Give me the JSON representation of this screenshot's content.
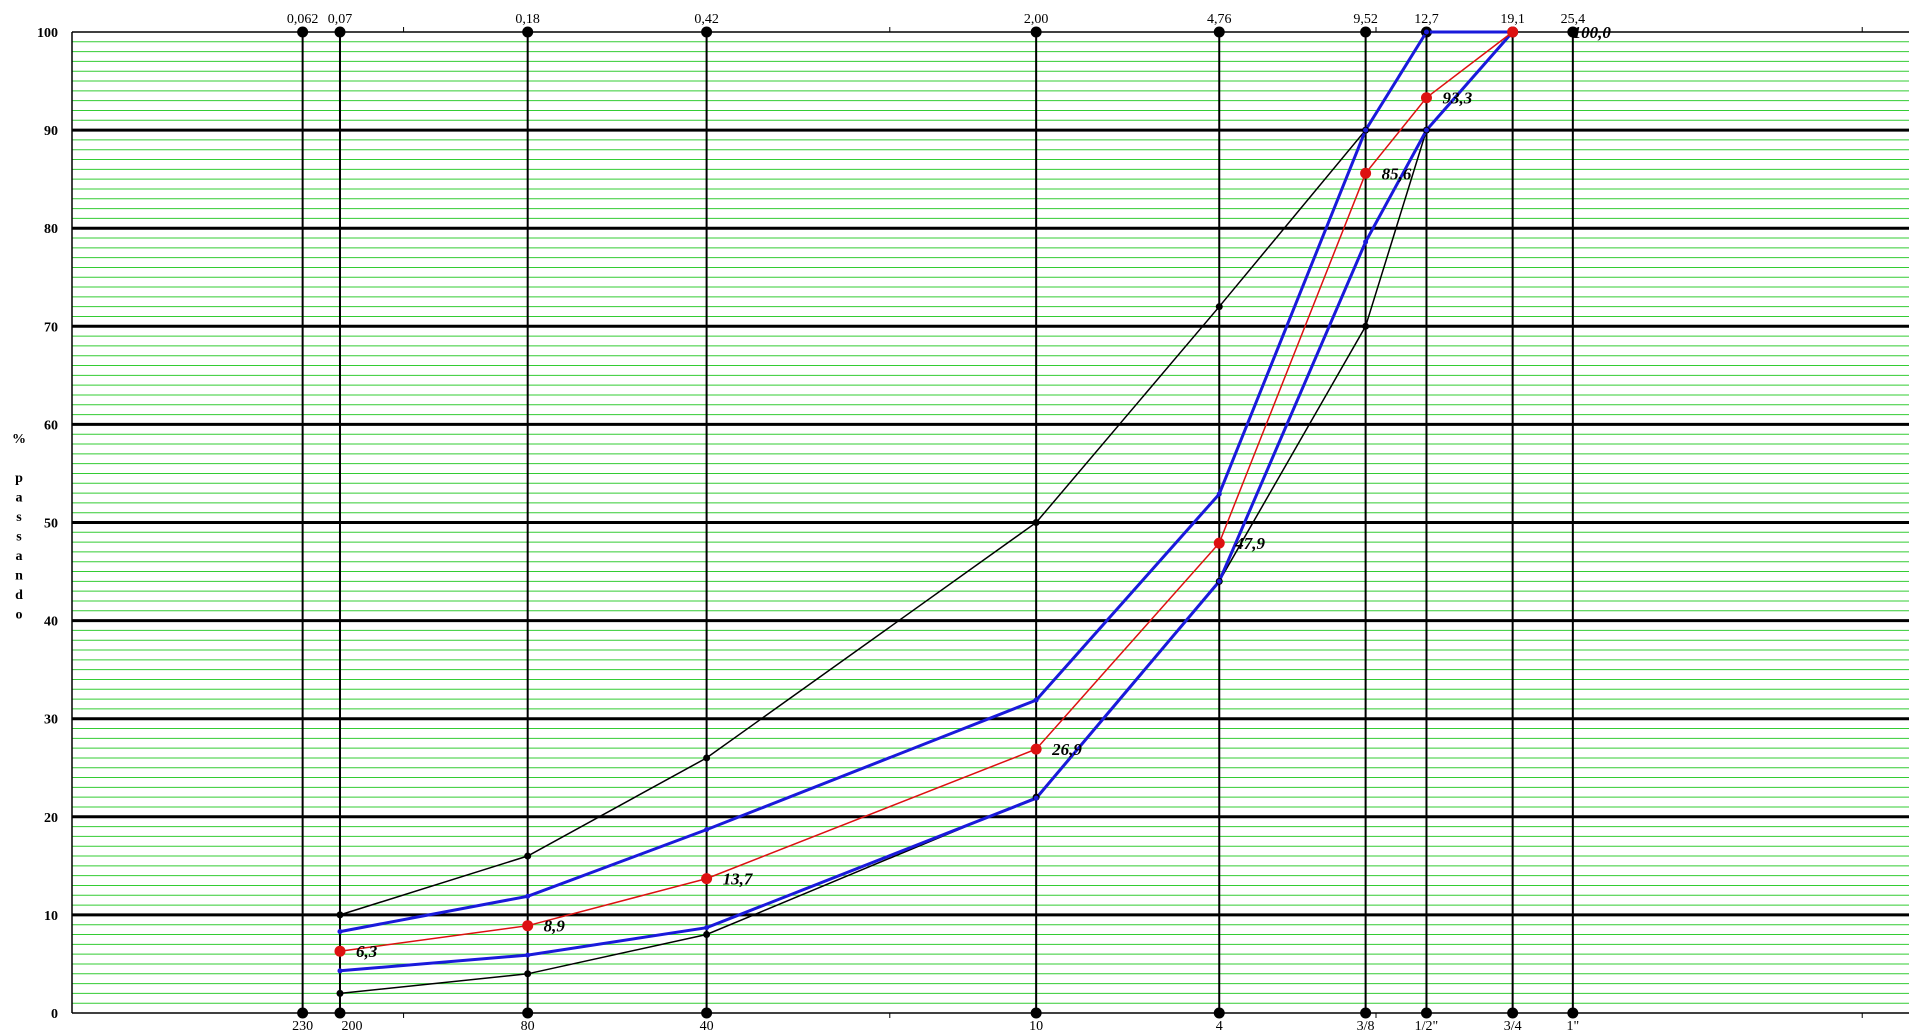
{
  "chart_data": {
    "type": "line",
    "title": "",
    "xlabel": "",
    "ylabel": "% passando",
    "ylim": [
      0,
      100
    ],
    "yticks": [
      "0",
      "10",
      "20",
      "30",
      "40",
      "50",
      "60",
      "70",
      "80",
      "90",
      "100"
    ],
    "sieves": [
      {
        "mm": 0.062,
        "top": "0,062",
        "bottom": "230"
      },
      {
        "mm": 0.074,
        "top": "0,07",
        "bottom": "200"
      },
      {
        "mm": 0.18,
        "top": "0,18",
        "bottom": "80"
      },
      {
        "mm": 0.42,
        "top": "0,42",
        "bottom": "40"
      },
      {
        "mm": 2.0,
        "top": "2,00",
        "bottom": "10"
      },
      {
        "mm": 4.76,
        "top": "4,76",
        "bottom": "4"
      },
      {
        "mm": 9.52,
        "top": "9,52",
        "bottom": "3/8"
      },
      {
        "mm": 12.7,
        "top": "12,7",
        "bottom": "1/2\""
      },
      {
        "mm": 19.1,
        "top": "19,1",
        "bottom": "3/4"
      },
      {
        "mm": 25.4,
        "top": "25,4",
        "bottom": "1\""
      }
    ],
    "series": [
      {
        "role": "spec-upper",
        "color": "#000000",
        "width": 1.5,
        "x": [
          0.074,
          0.18,
          0.42,
          2.0,
          4.76,
          9.52,
          12.7,
          19.1
        ],
        "y": [
          10,
          16,
          26,
          50,
          72,
          90,
          100,
          100
        ]
      },
      {
        "role": "spec-lower",
        "color": "#000000",
        "width": 1.5,
        "x": [
          0.074,
          0.18,
          0.42,
          2.0,
          4.76,
          9.52,
          12.7,
          19.1
        ],
        "y": [
          2,
          4,
          8,
          22,
          44,
          70,
          90,
          100
        ]
      },
      {
        "role": "band-upper",
        "color": "#1a1adb",
        "width": 3,
        "x": [
          0.074,
          0.18,
          0.42,
          2.0,
          4.76,
          9.52,
          12.7,
          19.1
        ],
        "y": [
          8.3,
          11.9,
          18.7,
          31.9,
          52.9,
          90,
          100,
          100
        ]
      },
      {
        "role": "band-lower",
        "color": "#1a1adb",
        "width": 3,
        "x": [
          0.074,
          0.18,
          0.42,
          2.0,
          4.76,
          9.52,
          12.7,
          19.1
        ],
        "y": [
          4.3,
          5.9,
          8.7,
          21.9,
          44,
          78.6,
          90,
          100
        ]
      },
      {
        "role": "project",
        "color": "#dd1111",
        "width": 1.5,
        "x": [
          0.074,
          0.18,
          0.42,
          2.0,
          4.76,
          9.52,
          12.7,
          19.1
        ],
        "y": [
          6.3,
          8.9,
          13.7,
          26.9,
          47.9,
          85.6,
          93.3,
          100.0
        ],
        "labels": [
          "6,3",
          "8,9",
          "13,7",
          "26,9",
          "47,9",
          "85,6",
          "93,3",
          "100,0"
        ]
      }
    ],
    "grid": {
      "major_color": "#000000",
      "minor_color": "#33cc33"
    },
    "background": "#ffffff"
  }
}
